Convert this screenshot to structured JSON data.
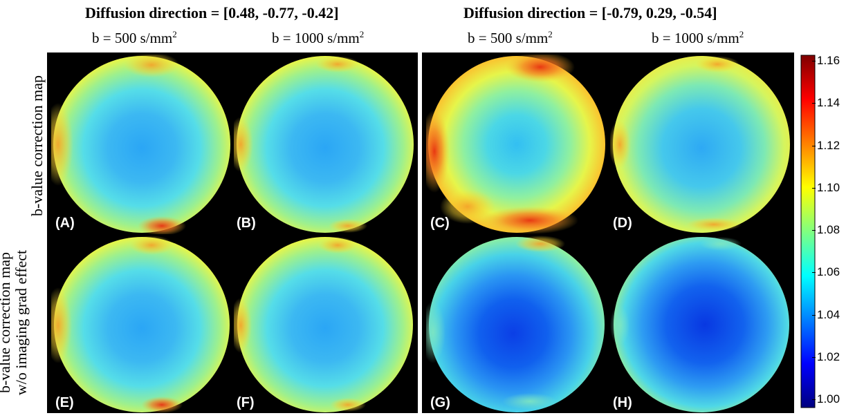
{
  "headings": {
    "left": "Diffusion direction = [0.48, -0.77, -0.42]",
    "right": "Diffusion direction = [-0.79, 0.29, -0.54]"
  },
  "column_labels": [
    {
      "text": "b = 500 s/mm",
      "sup": "2"
    },
    {
      "text": "b = 1000 s/mm",
      "sup": "2"
    },
    {
      "text": "b = 500 s/mm",
      "sup": "2"
    },
    {
      "text": "b = 1000 s/mm",
      "sup": "2"
    }
  ],
  "row_labels": {
    "top": [
      "b-value correction map"
    ],
    "bottom": [
      "b-value correction map",
      "w/o imaging grad effect"
    ]
  },
  "panels": [
    "(A)",
    "(B)",
    "(C)",
    "(D)",
    "(E)",
    "(F)",
    "(G)",
    "(H)"
  ],
  "colorbar": {
    "ticks": [
      "1.16",
      "1.14",
      "1.12",
      "1.10",
      "1.08",
      "1.06",
      "1.04",
      "1.02",
      "1.00"
    ],
    "colormap": "jet",
    "colors": [
      "#7f0000",
      "#ff0000",
      "#ff8000",
      "#ffff00",
      "#80ff80",
      "#00ffff",
      "#0080ff",
      "#0000ff",
      "#00007f"
    ]
  }
}
